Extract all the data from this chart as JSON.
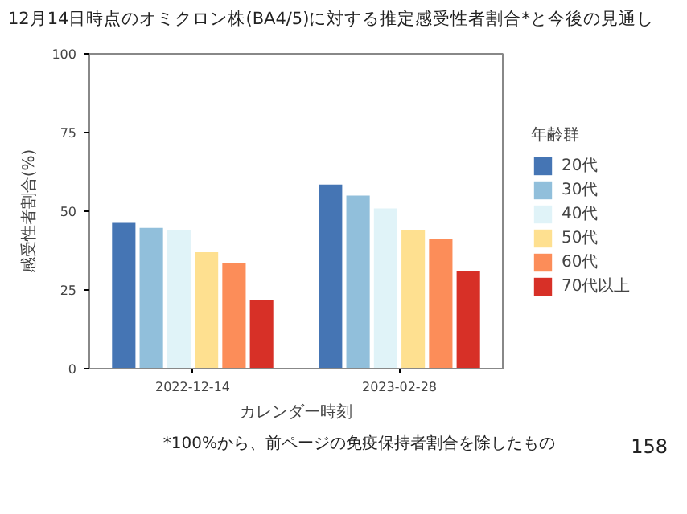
{
  "chart_data": {
    "type": "bar",
    "title": "12月14日時点のオミクロン株(BA4/5)に対する推定感受性者割合*と今後の見通し",
    "xlabel": "カレンダー時刻",
    "ylabel": "感受性者割合(%)",
    "legend_title": "年齢群",
    "categories": [
      "2022-12-14",
      "2023-02-28"
    ],
    "series": [
      {
        "name": "20代",
        "color": "#4575b4",
        "values": [
          46.3,
          58.5
        ]
      },
      {
        "name": "30代",
        "color": "#91bfdb",
        "values": [
          44.7,
          55.0
        ]
      },
      {
        "name": "40代",
        "color": "#e0f3f8",
        "values": [
          44.0,
          50.9
        ]
      },
      {
        "name": "50代",
        "color": "#fee090",
        "values": [
          37.0,
          44.0
        ]
      },
      {
        "name": "60代",
        "color": "#fc8d59",
        "values": [
          33.5,
          41.3
        ]
      },
      {
        "name": "70代以上",
        "color": "#d73027",
        "values": [
          21.7,
          30.9
        ]
      }
    ],
    "ylim": [
      0,
      100
    ],
    "yticks": [
      0,
      25,
      50,
      75,
      100
    ],
    "grid": false,
    "legend": "right",
    "annotations": [
      "158",
      "*100%から、前ページの免疫保持者割合を除したもの"
    ]
  }
}
